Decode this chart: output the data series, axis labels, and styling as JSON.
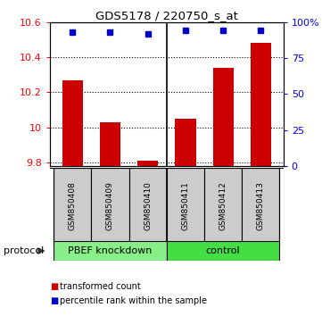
{
  "title": "GDS5178 / 220750_s_at",
  "samples": [
    "GSM850408",
    "GSM850409",
    "GSM850410",
    "GSM850411",
    "GSM850412",
    "GSM850413"
  ],
  "transformed_counts": [
    10.27,
    10.03,
    9.81,
    10.05,
    10.34,
    10.48
  ],
  "percentile_ranks": [
    93,
    93,
    92,
    94,
    94,
    94
  ],
  "ylim_left": [
    9.78,
    10.6
  ],
  "ylim_right": [
    0,
    100
  ],
  "right_ticks": [
    0,
    25,
    50,
    75,
    100
  ],
  "right_tick_labels": [
    "0",
    "25",
    "50",
    "75",
    "100%"
  ],
  "left_ticks": [
    9.8,
    10.0,
    10.2,
    10.4,
    10.6
  ],
  "left_tick_labels": [
    "9.8",
    "10",
    "10.2",
    "10.4",
    "10.6"
  ],
  "groups": [
    {
      "label": "PBEF knockdown",
      "indices": [
        0,
        1,
        2
      ],
      "color": "#88ee88"
    },
    {
      "label": "control",
      "indices": [
        3,
        4,
        5
      ],
      "color": "#44dd44"
    }
  ],
  "bar_color": "#cc0000",
  "dot_color": "#0000cc",
  "bar_width": 0.55,
  "protocol_label": "protocol",
  "legend_items": [
    {
      "color": "#cc0000",
      "label": "transformed count"
    },
    {
      "color": "#0000cc",
      "label": "percentile rank within the sample"
    }
  ],
  "sample_bg_color": "#cccccc",
  "bar_base": 9.78,
  "group_divider": 2.5
}
